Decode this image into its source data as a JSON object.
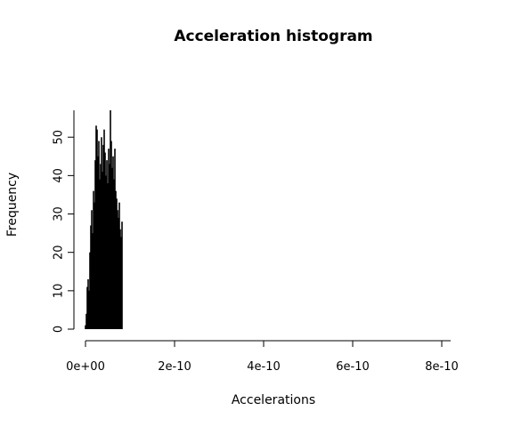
{
  "chart_data": {
    "type": "bar",
    "title": "Acceleration histogram",
    "xlabel": "Accelerations",
    "ylabel": "Frequency",
    "xlim": [
      0,
      8.2e-10
    ],
    "ylim": [
      0,
      57
    ],
    "bin_width": 2e-12,
    "x_ticks": [
      0,
      2e-10,
      4e-10,
      6e-10,
      8e-10
    ],
    "x_tick_labels": [
      "0e+00",
      "2e-10",
      "4e-10",
      "6e-10",
      "8e-10"
    ],
    "y_ticks": [
      0,
      10,
      20,
      30,
      40,
      50
    ],
    "y_tick_labels": [
      "0",
      "10",
      "20",
      "30",
      "40",
      "50"
    ],
    "grid": false,
    "legend": "none",
    "bins_center_approx": [
      {
        "x": 0.0,
        "y": 1
      },
      {
        "x": 2e-12,
        "y": 4
      },
      {
        "x": 4e-12,
        "y": 11
      },
      {
        "x": 6e-12,
        "y": 13
      },
      {
        "x": 8e-12,
        "y": 10
      },
      {
        "x": 1e-11,
        "y": 20
      },
      {
        "x": 1.2e-11,
        "y": 27
      },
      {
        "x": 1.4e-11,
        "y": 31
      },
      {
        "x": 1.6e-11,
        "y": 25
      },
      {
        "x": 1.8e-11,
        "y": 36
      },
      {
        "x": 2e-11,
        "y": 33
      },
      {
        "x": 2.2e-11,
        "y": 44
      },
      {
        "x": 2.4e-11,
        "y": 53
      },
      {
        "x": 2.6e-11,
        "y": 52
      },
      {
        "x": 2.8e-11,
        "y": 45
      },
      {
        "x": 3e-11,
        "y": 49
      },
      {
        "x": 3.2e-11,
        "y": 39
      },
      {
        "x": 3.4e-11,
        "y": 43
      },
      {
        "x": 3.6e-11,
        "y": 50
      },
      {
        "x": 3.8e-11,
        "y": 41
      },
      {
        "x": 4e-11,
        "y": 48
      },
      {
        "x": 4.2e-11,
        "y": 52
      },
      {
        "x": 4.4e-11,
        "y": 46
      },
      {
        "x": 4.6e-11,
        "y": 40
      },
      {
        "x": 4.8e-11,
        "y": 44
      },
      {
        "x": 5e-11,
        "y": 38
      },
      {
        "x": 5.2e-11,
        "y": 47
      },
      {
        "x": 5.4e-11,
        "y": 43
      },
      {
        "x": 5.6e-11,
        "y": 57
      },
      {
        "x": 5.8e-11,
        "y": 49
      },
      {
        "x": 6e-11,
        "y": 42
      },
      {
        "x": 6.2e-11,
        "y": 45
      },
      {
        "x": 6.4e-11,
        "y": 39
      },
      {
        "x": 6.6e-11,
        "y": 47
      },
      {
        "x": 6.8e-11,
        "y": 36
      },
      {
        "x": 7e-11,
        "y": 34
      },
      {
        "x": 7.2e-11,
        "y": 31
      },
      {
        "x": 7.4e-11,
        "y": 29
      },
      {
        "x": 7.6e-11,
        "y": 33
      },
      {
        "x": 7.8e-11,
        "y": 26
      },
      {
        "x": 8e-11,
        "y": 24
      },
      {
        "x": 8.2e-11,
        "y": 28
      }
    ]
  }
}
